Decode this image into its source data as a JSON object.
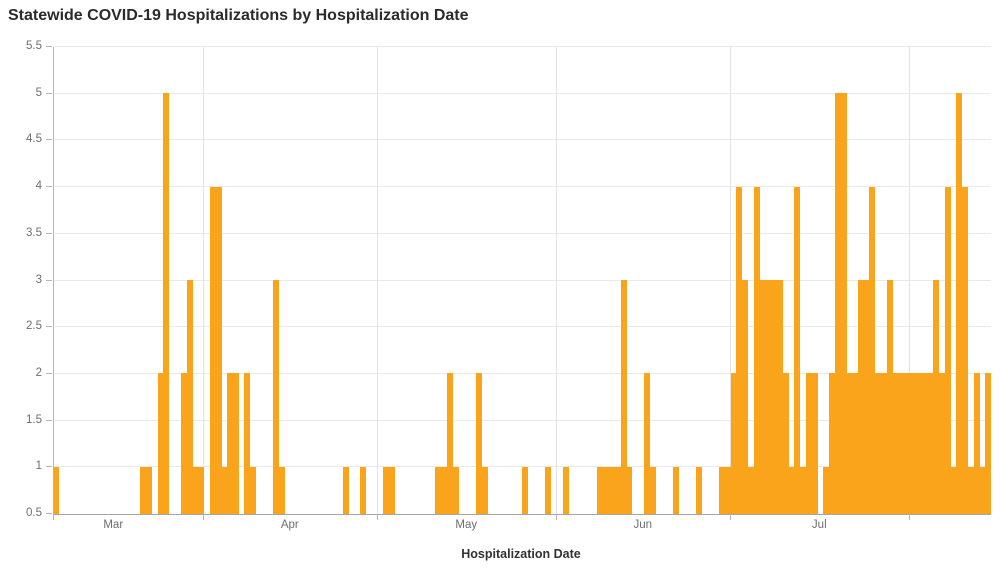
{
  "title": "Statewide COVID-19 Hospitalizations by Hospitalization Date",
  "colors": {
    "bar": "#FAA41B",
    "grid_h": "#e9e9e9",
    "grid_month": "#e2e2e2",
    "axis": "#a6a6a6",
    "tick": "#b5b5b5",
    "axis_label": "#6e6e6e",
    "title": "#2b2b2b"
  },
  "chart_data": {
    "type": "bar",
    "title": "Statewide COVID-19 Hospitalizations by Hospitalization Date",
    "xlabel": "Hospitalization Date",
    "ylabel": "",
    "ylim": [
      0.5,
      5.5
    ],
    "y_tick_labels": [
      "0.5",
      "1",
      "1.5",
      "2",
      "2.5",
      "3",
      "3.5",
      "4",
      "4.5",
      "5",
      "5.5"
    ],
    "x_tick_labels": [
      "Mar",
      "Apr",
      "May",
      "Jun",
      "Jul"
    ],
    "grid": true,
    "legend": "none",
    "axis_start": {
      "month": "Mar",
      "day": 6
    },
    "axis_end": {
      "month": "Aug",
      "day": 15
    },
    "months": [
      {
        "name": "Mar",
        "days": 31,
        "show_label": true
      },
      {
        "name": "Apr",
        "days": 30,
        "show_label": true
      },
      {
        "name": "May",
        "days": 31,
        "show_label": true
      },
      {
        "name": "Jun",
        "days": 30,
        "show_label": true
      },
      {
        "name": "Jul",
        "days": 31,
        "show_label": true
      },
      {
        "name": "Aug",
        "days": 31,
        "show_label": false
      }
    ],
    "points": [
      {
        "date": "Mar 6",
        "value": 1
      },
      {
        "date": "Mar 21",
        "value": 1
      },
      {
        "date": "Mar 22",
        "value": 1
      },
      {
        "date": "Mar 24",
        "value": 2
      },
      {
        "date": "Mar 25",
        "value": 5
      },
      {
        "date": "Mar 28",
        "value": 2
      },
      {
        "date": "Mar 29",
        "value": 3
      },
      {
        "date": "Mar 30",
        "value": 1
      },
      {
        "date": "Mar 31",
        "value": 1
      },
      {
        "date": "Apr 2",
        "value": 4
      },
      {
        "date": "Apr 3",
        "value": 4
      },
      {
        "date": "Apr 4",
        "value": 1
      },
      {
        "date": "Apr 5",
        "value": 2
      },
      {
        "date": "Apr 6",
        "value": 2
      },
      {
        "date": "Apr 8",
        "value": 2
      },
      {
        "date": "Apr 9",
        "value": 1
      },
      {
        "date": "Apr 13",
        "value": 3
      },
      {
        "date": "Apr 14",
        "value": 1
      },
      {
        "date": "Apr 25",
        "value": 1
      },
      {
        "date": "Apr 28",
        "value": 1
      },
      {
        "date": "May 2",
        "value": 1
      },
      {
        "date": "May 3",
        "value": 1
      },
      {
        "date": "May 11",
        "value": 1
      },
      {
        "date": "May 12",
        "value": 1
      },
      {
        "date": "May 13",
        "value": 2
      },
      {
        "date": "May 14",
        "value": 1
      },
      {
        "date": "May 18",
        "value": 2
      },
      {
        "date": "May 19",
        "value": 1
      },
      {
        "date": "May 26",
        "value": 1
      },
      {
        "date": "May 30",
        "value": 1
      },
      {
        "date": "Jun 2",
        "value": 1
      },
      {
        "date": "Jun 8",
        "value": 1
      },
      {
        "date": "Jun 9",
        "value": 1
      },
      {
        "date": "Jun 10",
        "value": 1
      },
      {
        "date": "Jun 11",
        "value": 1
      },
      {
        "date": "Jun 12",
        "value": 3
      },
      {
        "date": "Jun 13",
        "value": 1
      },
      {
        "date": "Jun 16",
        "value": 2
      },
      {
        "date": "Jun 17",
        "value": 1
      },
      {
        "date": "Jun 21",
        "value": 1
      },
      {
        "date": "Jun 25",
        "value": 1
      },
      {
        "date": "Jun 29",
        "value": 1
      },
      {
        "date": "Jun 30",
        "value": 1
      },
      {
        "date": "Jul 1",
        "value": 2
      },
      {
        "date": "Jul 2",
        "value": 4
      },
      {
        "date": "Jul 3",
        "value": 3
      },
      {
        "date": "Jul 4",
        "value": 1
      },
      {
        "date": "Jul 5",
        "value": 4
      },
      {
        "date": "Jul 6",
        "value": 3
      },
      {
        "date": "Jul 7",
        "value": 3
      },
      {
        "date": "Jul 8",
        "value": 3
      },
      {
        "date": "Jul 9",
        "value": 3
      },
      {
        "date": "Jul 10",
        "value": 2
      },
      {
        "date": "Jul 11",
        "value": 1
      },
      {
        "date": "Jul 12",
        "value": 4
      },
      {
        "date": "Jul 13",
        "value": 1
      },
      {
        "date": "Jul 14",
        "value": 2
      },
      {
        "date": "Jul 15",
        "value": 2
      },
      {
        "date": "Jul 17",
        "value": 1
      },
      {
        "date": "Jul 18",
        "value": 2
      },
      {
        "date": "Jul 19",
        "value": 5
      },
      {
        "date": "Jul 20",
        "value": 5
      },
      {
        "date": "Jul 21",
        "value": 2
      },
      {
        "date": "Jul 22",
        "value": 2
      },
      {
        "date": "Jul 23",
        "value": 3
      },
      {
        "date": "Jul 24",
        "value": 3
      },
      {
        "date": "Jul 25",
        "value": 4
      },
      {
        "date": "Jul 26",
        "value": 2
      },
      {
        "date": "Jul 27",
        "value": 2
      },
      {
        "date": "Jul 28",
        "value": 3
      },
      {
        "date": "Jul 29",
        "value": 2
      },
      {
        "date": "Jul 30",
        "value": 2
      },
      {
        "date": "Jul 31",
        "value": 2
      },
      {
        "date": "Aug 1",
        "value": 2
      },
      {
        "date": "Aug 2",
        "value": 2
      },
      {
        "date": "Aug 3",
        "value": 2
      },
      {
        "date": "Aug 4",
        "value": 2
      },
      {
        "date": "Aug 5",
        "value": 3
      },
      {
        "date": "Aug 6",
        "value": 2
      },
      {
        "date": "Aug 7",
        "value": 4
      },
      {
        "date": "Aug 8",
        "value": 1
      },
      {
        "date": "Aug 9",
        "value": 5
      },
      {
        "date": "Aug 10",
        "value": 4
      },
      {
        "date": "Aug 11",
        "value": 1
      },
      {
        "date": "Aug 12",
        "value": 2
      },
      {
        "date": "Aug 13",
        "value": 1
      },
      {
        "date": "Aug 14",
        "value": 2
      }
    ]
  }
}
